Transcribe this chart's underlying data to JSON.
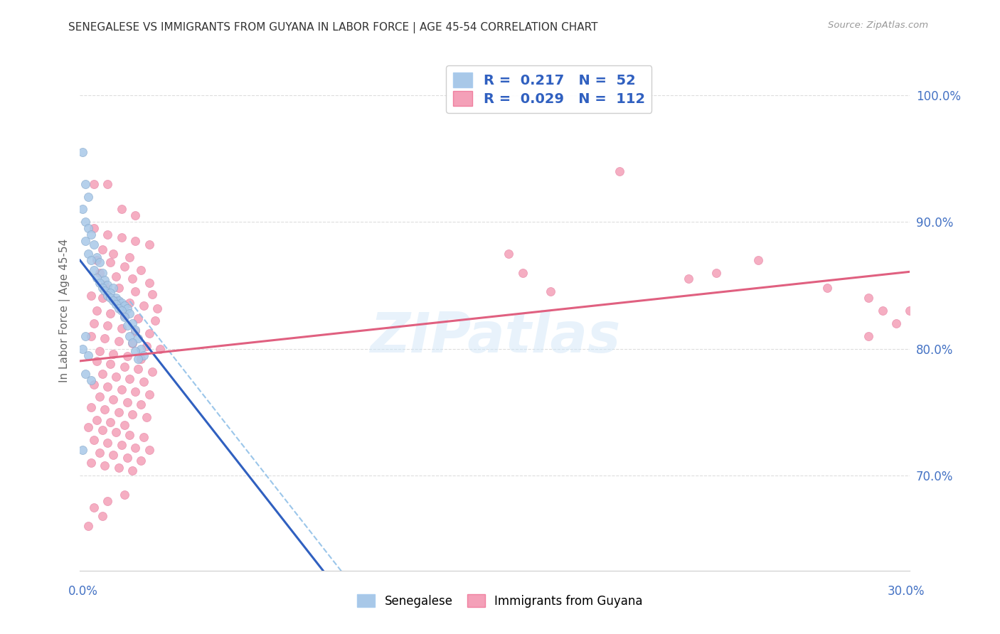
{
  "title": "SENEGALESE VS IMMIGRANTS FROM GUYANA IN LABOR FORCE | AGE 45-54 CORRELATION CHART",
  "source": "Source: ZipAtlas.com",
  "ylabel": "In Labor Force | Age 45-54",
  "legend_label1": "Senegalese",
  "legend_label2": "Immigrants from Guyana",
  "R1": 0.217,
  "N1": 52,
  "R2": 0.029,
  "N2": 112,
  "color1": "#a8c8e8",
  "color2": "#f4a0b8",
  "line1_color": "#3060c0",
  "line2_color": "#e06080",
  "dash_color": "#90c0e8",
  "background_color": "#ffffff",
  "watermark": "ZIPatlas",
  "xmin": 0.0,
  "xmax": 0.3,
  "ymin": 0.625,
  "ymax": 1.035,
  "yticks": [
    0.7,
    0.8,
    0.9,
    1.0
  ],
  "blue_points": [
    [
      0.001,
      0.955
    ],
    [
      0.002,
      0.93
    ],
    [
      0.001,
      0.91
    ],
    [
      0.002,
      0.9
    ],
    [
      0.003,
      0.92
    ],
    [
      0.003,
      0.895
    ],
    [
      0.004,
      0.89
    ],
    [
      0.002,
      0.885
    ],
    [
      0.005,
      0.882
    ],
    [
      0.003,
      0.875
    ],
    [
      0.006,
      0.872
    ],
    [
      0.004,
      0.87
    ],
    [
      0.007,
      0.868
    ],
    [
      0.005,
      0.862
    ],
    [
      0.008,
      0.86
    ],
    [
      0.006,
      0.856
    ],
    [
      0.009,
      0.854
    ],
    [
      0.007,
      0.852
    ],
    [
      0.01,
      0.85
    ],
    [
      0.008,
      0.848
    ],
    [
      0.012,
      0.848
    ],
    [
      0.009,
      0.846
    ],
    [
      0.011,
      0.844
    ],
    [
      0.01,
      0.842
    ],
    [
      0.013,
      0.84
    ],
    [
      0.011,
      0.84
    ],
    [
      0.014,
      0.838
    ],
    [
      0.012,
      0.838
    ],
    [
      0.015,
      0.836
    ],
    [
      0.013,
      0.835
    ],
    [
      0.016,
      0.834
    ],
    [
      0.014,
      0.832
    ],
    [
      0.017,
      0.832
    ],
    [
      0.015,
      0.83
    ],
    [
      0.018,
      0.828
    ],
    [
      0.016,
      0.825
    ],
    [
      0.019,
      0.82
    ],
    [
      0.017,
      0.818
    ],
    [
      0.02,
      0.815
    ],
    [
      0.018,
      0.81
    ],
    [
      0.021,
      0.808
    ],
    [
      0.019,
      0.805
    ],
    [
      0.022,
      0.8
    ],
    [
      0.02,
      0.798
    ],
    [
      0.023,
      0.795
    ],
    [
      0.021,
      0.792
    ],
    [
      0.001,
      0.72
    ],
    [
      0.001,
      0.8
    ],
    [
      0.002,
      0.81
    ],
    [
      0.003,
      0.795
    ],
    [
      0.002,
      0.78
    ],
    [
      0.004,
      0.775
    ]
  ],
  "pink_points": [
    [
      0.005,
      0.93
    ],
    [
      0.01,
      0.93
    ],
    [
      0.015,
      0.91
    ],
    [
      0.02,
      0.905
    ],
    [
      0.005,
      0.895
    ],
    [
      0.01,
      0.89
    ],
    [
      0.015,
      0.888
    ],
    [
      0.02,
      0.885
    ],
    [
      0.025,
      0.882
    ],
    [
      0.008,
      0.878
    ],
    [
      0.012,
      0.875
    ],
    [
      0.018,
      0.872
    ],
    [
      0.006,
      0.87
    ],
    [
      0.011,
      0.868
    ],
    [
      0.016,
      0.865
    ],
    [
      0.022,
      0.862
    ],
    [
      0.007,
      0.86
    ],
    [
      0.013,
      0.857
    ],
    [
      0.019,
      0.855
    ],
    [
      0.025,
      0.852
    ],
    [
      0.009,
      0.85
    ],
    [
      0.014,
      0.848
    ],
    [
      0.02,
      0.845
    ],
    [
      0.026,
      0.843
    ],
    [
      0.004,
      0.842
    ],
    [
      0.008,
      0.84
    ],
    [
      0.013,
      0.838
    ],
    [
      0.018,
      0.836
    ],
    [
      0.023,
      0.834
    ],
    [
      0.028,
      0.832
    ],
    [
      0.006,
      0.83
    ],
    [
      0.011,
      0.828
    ],
    [
      0.016,
      0.826
    ],
    [
      0.021,
      0.824
    ],
    [
      0.027,
      0.822
    ],
    [
      0.005,
      0.82
    ],
    [
      0.01,
      0.818
    ],
    [
      0.015,
      0.816
    ],
    [
      0.02,
      0.814
    ],
    [
      0.025,
      0.812
    ],
    [
      0.004,
      0.81
    ],
    [
      0.009,
      0.808
    ],
    [
      0.014,
      0.806
    ],
    [
      0.019,
      0.804
    ],
    [
      0.024,
      0.802
    ],
    [
      0.029,
      0.8
    ],
    [
      0.007,
      0.798
    ],
    [
      0.012,
      0.796
    ],
    [
      0.017,
      0.794
    ],
    [
      0.022,
      0.792
    ],
    [
      0.006,
      0.79
    ],
    [
      0.011,
      0.788
    ],
    [
      0.016,
      0.786
    ],
    [
      0.021,
      0.784
    ],
    [
      0.026,
      0.782
    ],
    [
      0.008,
      0.78
    ],
    [
      0.013,
      0.778
    ],
    [
      0.018,
      0.776
    ],
    [
      0.023,
      0.774
    ],
    [
      0.005,
      0.772
    ],
    [
      0.01,
      0.77
    ],
    [
      0.015,
      0.768
    ],
    [
      0.02,
      0.766
    ],
    [
      0.025,
      0.764
    ],
    [
      0.007,
      0.762
    ],
    [
      0.012,
      0.76
    ],
    [
      0.017,
      0.758
    ],
    [
      0.022,
      0.756
    ],
    [
      0.004,
      0.754
    ],
    [
      0.009,
      0.752
    ],
    [
      0.014,
      0.75
    ],
    [
      0.019,
      0.748
    ],
    [
      0.024,
      0.746
    ],
    [
      0.006,
      0.744
    ],
    [
      0.011,
      0.742
    ],
    [
      0.016,
      0.74
    ],
    [
      0.003,
      0.738
    ],
    [
      0.008,
      0.736
    ],
    [
      0.013,
      0.734
    ],
    [
      0.018,
      0.732
    ],
    [
      0.023,
      0.73
    ],
    [
      0.005,
      0.728
    ],
    [
      0.01,
      0.726
    ],
    [
      0.015,
      0.724
    ],
    [
      0.02,
      0.722
    ],
    [
      0.025,
      0.72
    ],
    [
      0.007,
      0.718
    ],
    [
      0.012,
      0.716
    ],
    [
      0.017,
      0.714
    ],
    [
      0.022,
      0.712
    ],
    [
      0.004,
      0.71
    ],
    [
      0.009,
      0.708
    ],
    [
      0.014,
      0.706
    ],
    [
      0.019,
      0.704
    ],
    [
      0.016,
      0.685
    ],
    [
      0.01,
      0.68
    ],
    [
      0.005,
      0.675
    ],
    [
      0.008,
      0.668
    ],
    [
      0.003,
      0.66
    ],
    [
      0.195,
      0.94
    ],
    [
      0.245,
      0.87
    ],
    [
      0.155,
      0.875
    ],
    [
      0.285,
      0.84
    ],
    [
      0.295,
      0.82
    ],
    [
      0.285,
      0.81
    ],
    [
      0.16,
      0.86
    ],
    [
      0.17,
      0.845
    ],
    [
      0.29,
      0.83
    ],
    [
      0.3,
      0.83
    ],
    [
      0.23,
      0.86
    ],
    [
      0.22,
      0.855
    ],
    [
      0.27,
      0.848
    ]
  ]
}
